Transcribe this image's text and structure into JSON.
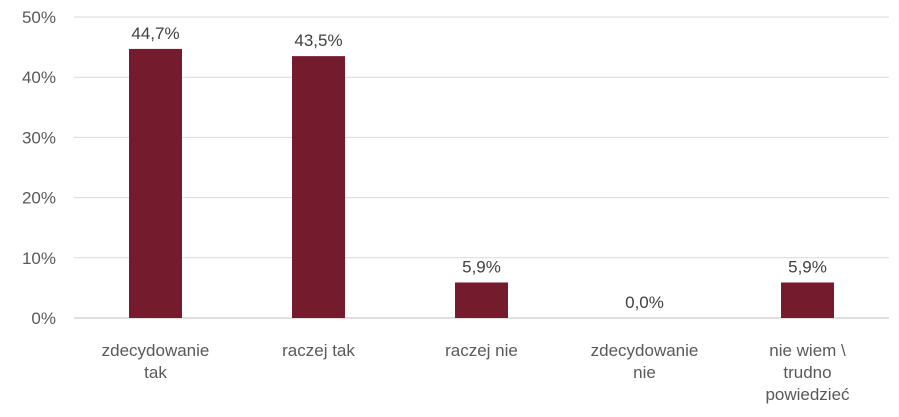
{
  "chart_data": {
    "type": "bar",
    "categories": [
      [
        "zdecydowanie",
        "tak"
      ],
      [
        "raczej tak"
      ],
      [
        "raczej nie"
      ],
      [
        "zdecydowanie",
        "nie"
      ],
      [
        "nie wiem \\",
        "trudno",
        "powiedzieć"
      ]
    ],
    "values": [
      44.7,
      43.5,
      5.9,
      0.0,
      5.9
    ],
    "data_labels": [
      "44,7%",
      "43,5%",
      "5,9%",
      "0,0%",
      "5,9%"
    ],
    "ylim": [
      0,
      50
    ],
    "yticks": [
      {
        "value": 0,
        "label": "0%"
      },
      {
        "value": 10,
        "label": "10%"
      },
      {
        "value": 20,
        "label": "20%"
      },
      {
        "value": 30,
        "label": "30%"
      },
      {
        "value": 40,
        "label": "40%"
      },
      {
        "value": 50,
        "label": "50%"
      }
    ],
    "title": "",
    "xlabel": "",
    "ylabel": "",
    "grid": true,
    "legend": "none",
    "colors": {
      "bar": "#741B2E",
      "grid": "#D9D9D9",
      "axis": "#BFBFBF"
    }
  }
}
